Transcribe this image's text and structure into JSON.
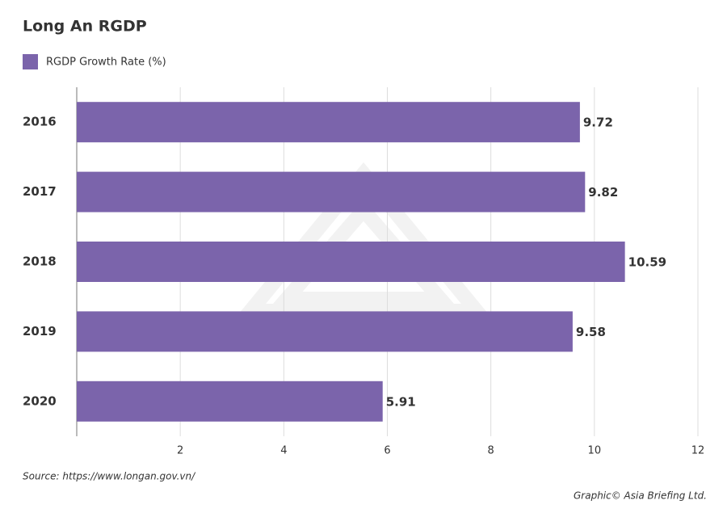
{
  "chart_data": {
    "type": "bar",
    "orientation": "horizontal",
    "title": "Long An RGDP",
    "categories": [
      "2016",
      "2017",
      "2018",
      "2019",
      "2020"
    ],
    "series": [
      {
        "name": "RGDP Growth Rate (%)",
        "color": "#7b64ab",
        "values": [
          9.72,
          9.82,
          10.59,
          9.58,
          5.91
        ]
      }
    ],
    "xlim": [
      0,
      12
    ],
    "xticks": [
      2,
      4,
      6,
      8,
      10,
      12
    ],
    "grid": true,
    "legend": "top-left",
    "source": "Source: https://www.longan.gov.vn/",
    "credit": "Graphic© Asia Briefing Ltd."
  }
}
